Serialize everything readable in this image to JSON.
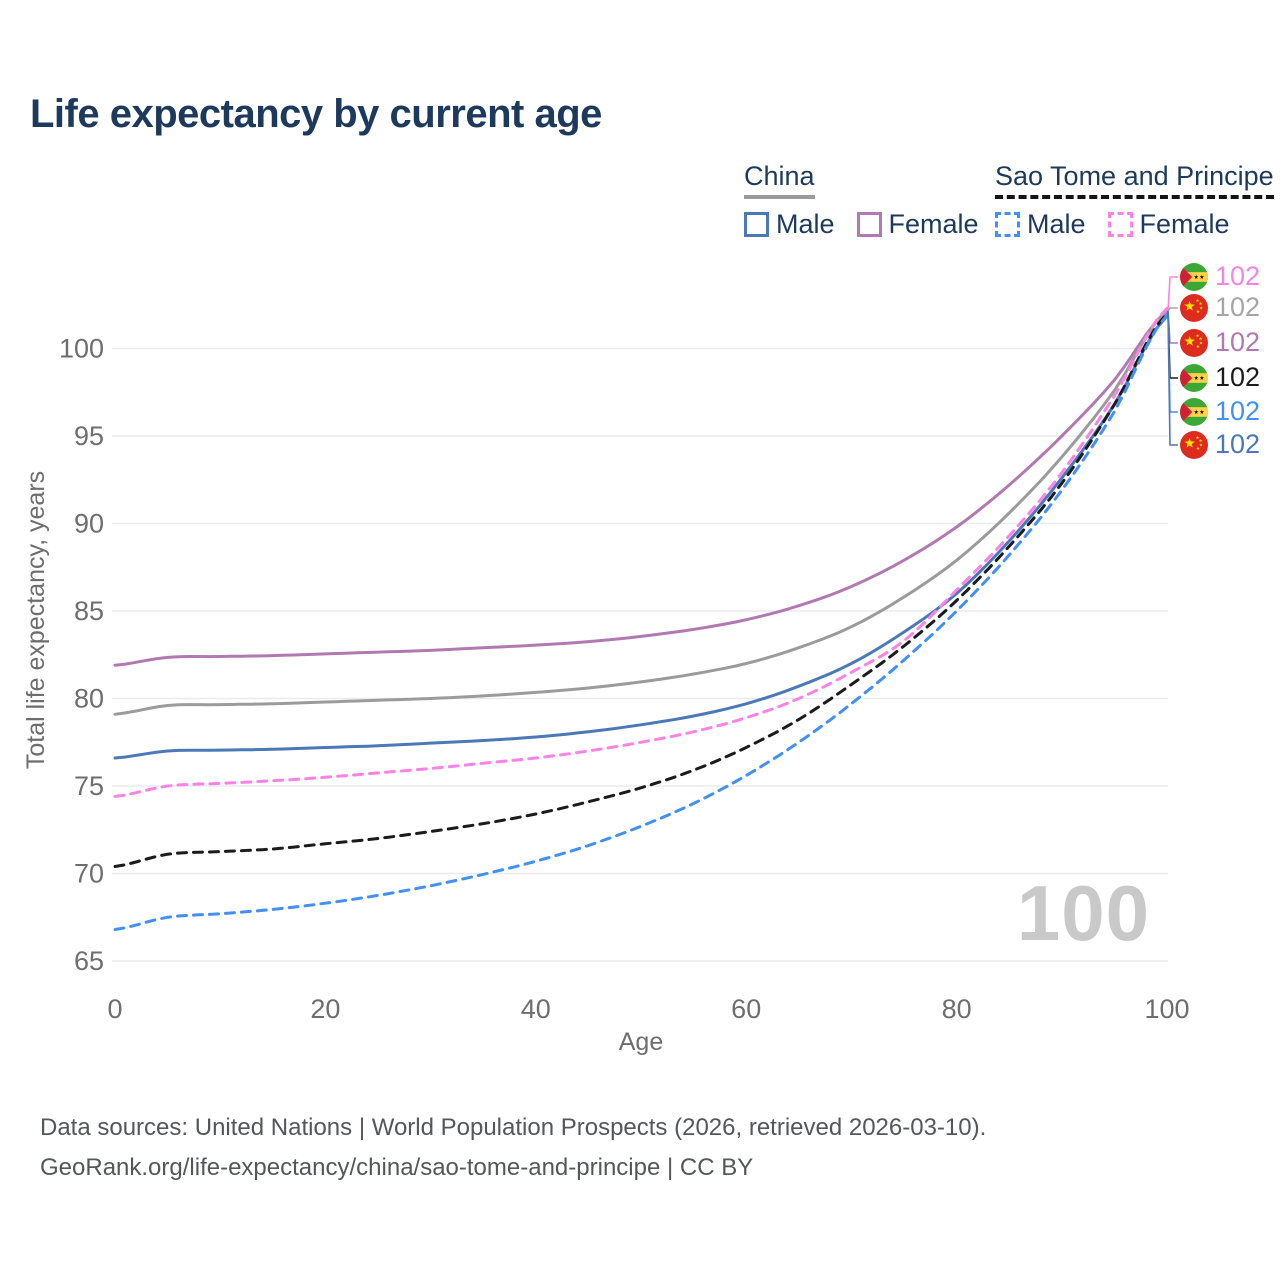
{
  "title": "Life expectancy by current age",
  "legend": {
    "china": {
      "header": "China",
      "male": "Male",
      "female": "Female"
    },
    "stp": {
      "header": "Sao Tome and Principe",
      "male": "Male",
      "female": "Female"
    }
  },
  "colors": {
    "title_text": "#1d3a5c",
    "china_male": "#4b79b7",
    "china_female": "#b179b1",
    "china_both": "#9b9b9b",
    "stp_male": "#4390f4",
    "stp_female": "#fb83e6",
    "stp_both": "#1b1b1b",
    "gridline": "#ebebee",
    "axis_text": "#6e6e6e",
    "watermark": "#c9c9c9"
  },
  "watermark": "100",
  "end_labels": [
    {
      "flag": "sao-tome-and-principe",
      "series": "stp-female",
      "value": "102",
      "color": "#fb83e6"
    },
    {
      "flag": "china",
      "series": "china-both",
      "value": "102",
      "color": "#a5a5a5"
    },
    {
      "flag": "china",
      "series": "china-female",
      "value": "102",
      "color": "#b179b1"
    },
    {
      "flag": "sao-tome-and-principe",
      "series": "stp-both",
      "value": "102",
      "color": "#1b1b1b"
    },
    {
      "flag": "sao-tome-and-principe",
      "series": "stp-male",
      "value": "102",
      "color": "#4390f4"
    },
    {
      "flag": "china",
      "series": "china-male",
      "value": "102",
      "color": "#4b79b7"
    }
  ],
  "chart_data": {
    "type": "line",
    "title": "Life expectancy by current age",
    "xlabel": "Age",
    "ylabel": "Total life expectancy, years",
    "xlim": [
      0,
      100
    ],
    "ylim": [
      63,
      104
    ],
    "xticks": [
      0,
      20,
      40,
      60,
      80,
      100
    ],
    "yticks": [
      65,
      70,
      75,
      80,
      85,
      90,
      95,
      100
    ],
    "grid": "horizontal",
    "legend_position": "top-right",
    "x": [
      0,
      5,
      10,
      15,
      20,
      25,
      30,
      35,
      40,
      45,
      50,
      55,
      60,
      65,
      70,
      75,
      80,
      85,
      90,
      95,
      100
    ],
    "series": [
      {
        "name": "China Female",
        "country": "China",
        "sex": "Female",
        "color": "#b179b1",
        "dashed": false,
        "values": [
          81.9,
          82.35,
          82.4,
          82.45,
          82.55,
          82.65,
          82.75,
          82.9,
          83.05,
          83.25,
          83.55,
          83.95,
          84.5,
          85.3,
          86.4,
          87.9,
          89.8,
          92.2,
          95.0,
          98.2,
          102.1
        ]
      },
      {
        "name": "China Both sexes",
        "country": "China",
        "sex": "Both",
        "color": "#9b9b9b",
        "dashed": false,
        "values": [
          79.1,
          79.6,
          79.65,
          79.7,
          79.8,
          79.9,
          80.0,
          80.15,
          80.35,
          80.6,
          80.95,
          81.4,
          82.0,
          82.9,
          84.1,
          85.8,
          87.9,
          90.6,
          93.8,
          97.6,
          102.2
        ]
      },
      {
        "name": "China Male",
        "country": "China",
        "sex": "Male",
        "color": "#4b79b7",
        "dashed": false,
        "values": [
          76.6,
          77.0,
          77.05,
          77.1,
          77.2,
          77.3,
          77.45,
          77.6,
          77.8,
          78.1,
          78.5,
          79.0,
          79.7,
          80.7,
          82.0,
          83.8,
          86.0,
          89.0,
          92.6,
          96.8,
          101.85
        ]
      },
      {
        "name": "Sao Tome and Principe Female",
        "country": "Sao Tome and Principe",
        "sex": "Female",
        "color": "#fb83e6",
        "dashed": true,
        "values": [
          74.4,
          75.0,
          75.15,
          75.3,
          75.5,
          75.75,
          76.0,
          76.3,
          76.6,
          77.0,
          77.5,
          78.1,
          78.9,
          80.0,
          81.5,
          83.3,
          86.2,
          89.3,
          92.9,
          97.3,
          102.3
        ]
      },
      {
        "name": "Sao Tome and Principe Both sexes",
        "country": "Sao Tome and Principe",
        "sex": "Both",
        "color": "#1b1b1b",
        "dashed": true,
        "values": [
          70.4,
          71.1,
          71.25,
          71.4,
          71.7,
          72.0,
          72.4,
          72.85,
          73.4,
          74.1,
          74.9,
          75.9,
          77.2,
          78.8,
          80.8,
          83.0,
          85.6,
          88.7,
          92.3,
          96.8,
          102.0
        ]
      },
      {
        "name": "Sao Tome and Principe Male",
        "country": "Sao Tome and Principe",
        "sex": "Male",
        "color": "#4390f4",
        "dashed": true,
        "values": [
          66.8,
          67.5,
          67.7,
          67.95,
          68.3,
          68.75,
          69.3,
          69.95,
          70.7,
          71.6,
          72.7,
          74.0,
          75.6,
          77.5,
          79.7,
          82.2,
          85.0,
          88.2,
          91.9,
          96.4,
          101.9
        ]
      }
    ],
    "end_value_labels": [
      "102",
      "102",
      "102",
      "102",
      "102",
      "102"
    ]
  },
  "footer": {
    "line1": "Data sources: United Nations | World Population Prospects (2026, retrieved 2026-03-10).",
    "line2": "GeoRank.org/life-expectancy/china/sao-tome-and-principe | CC BY"
  }
}
